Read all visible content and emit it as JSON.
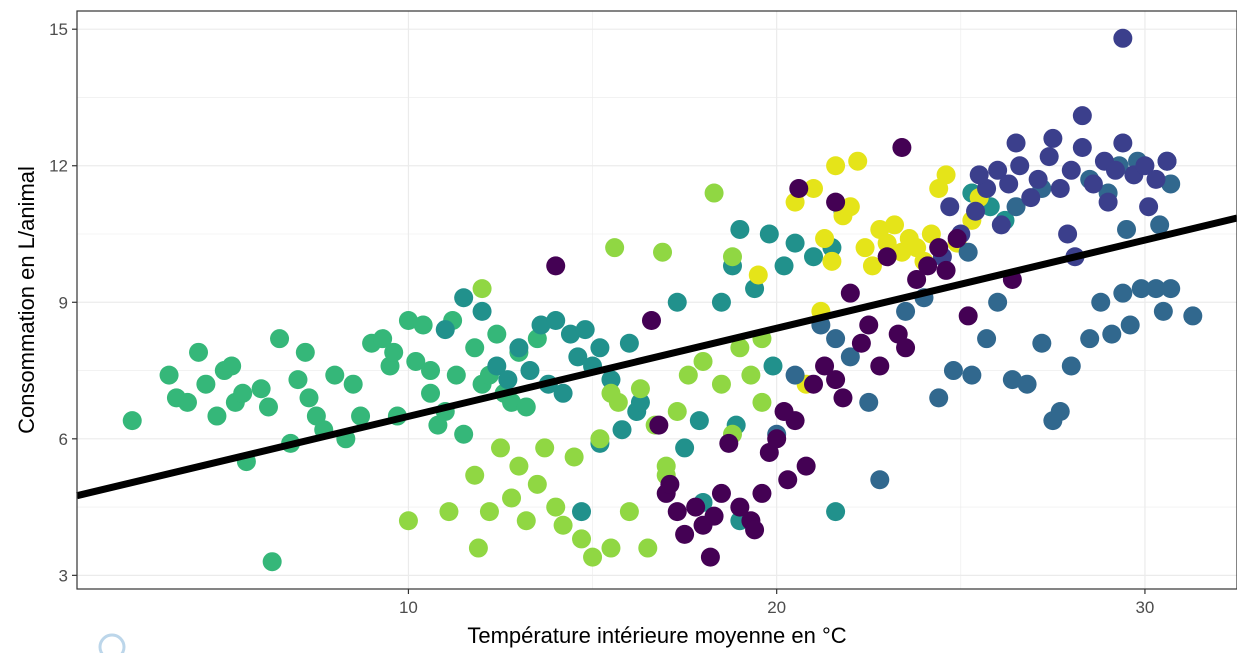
{
  "chart_data": {
    "type": "scatter",
    "title": "",
    "xlabel": "Température intérieure moyenne en °C",
    "ylabel": "Consommation en L/animal",
    "xlim": [
      1,
      32.5
    ],
    "ylim": [
      2.7,
      15.4
    ],
    "xticks": [
      10,
      20,
      30
    ],
    "yticks": [
      3,
      6,
      9,
      12,
      15
    ],
    "grid": true,
    "legend": "none",
    "colors": {
      "dark_purple": "#440154",
      "indigo": "#3b3f8c",
      "blue": "#31688e",
      "teal": "#21918c",
      "green": "#35b779",
      "lime": "#90d743",
      "yellow": "#e5e419",
      "regression_line": "#000000",
      "panel_border": "#333333",
      "grid": "#ebebeb"
    },
    "regression": {
      "x": [
        1,
        32.5
      ],
      "y": [
        4.75,
        10.85
      ]
    },
    "series": [
      {
        "color_key": "green",
        "points": [
          [
            2.5,
            6.4
          ],
          [
            3.5,
            7.4
          ],
          [
            3.7,
            6.9
          ],
          [
            4.0,
            6.8
          ],
          [
            4.3,
            7.9
          ],
          [
            4.5,
            7.2
          ],
          [
            4.8,
            6.5
          ],
          [
            5.0,
            7.5
          ],
          [
            5.2,
            7.6
          ],
          [
            5.3,
            6.8
          ],
          [
            5.5,
            7.0
          ],
          [
            5.6,
            5.5
          ],
          [
            6.0,
            7.1
          ],
          [
            6.2,
            6.7
          ],
          [
            6.5,
            8.2
          ],
          [
            6.8,
            5.9
          ],
          [
            7.0,
            7.3
          ],
          [
            7.2,
            7.9
          ],
          [
            7.5,
            6.5
          ],
          [
            7.7,
            6.2
          ],
          [
            8.0,
            7.4
          ],
          [
            8.3,
            6.0
          ],
          [
            8.5,
            7.2
          ],
          [
            8.7,
            6.5
          ],
          [
            9.0,
            8.1
          ],
          [
            9.3,
            8.2
          ],
          [
            9.5,
            7.6
          ],
          [
            9.7,
            6.5
          ],
          [
            10.0,
            8.6
          ],
          [
            10.2,
            7.7
          ],
          [
            10.4,
            8.5
          ],
          [
            10.6,
            7.5
          ],
          [
            10.8,
            6.3
          ],
          [
            11.0,
            6.6
          ],
          [
            11.2,
            8.6
          ],
          [
            11.3,
            7.4
          ],
          [
            11.5,
            6.1
          ],
          [
            11.8,
            8.0
          ],
          [
            12.0,
            7.2
          ],
          [
            12.2,
            7.4
          ],
          [
            12.4,
            8.3
          ],
          [
            12.6,
            7.0
          ],
          [
            12.8,
            6.8
          ],
          [
            13.0,
            7.9
          ],
          [
            13.2,
            6.7
          ],
          [
            13.5,
            8.2
          ],
          [
            6.3,
            3.3
          ],
          [
            7.3,
            6.9
          ],
          [
            9.6,
            7.9
          ],
          [
            10.6,
            7.0
          ]
        ]
      },
      {
        "color_key": "teal",
        "points": [
          [
            11.0,
            8.4
          ],
          [
            11.5,
            9.1
          ],
          [
            12.0,
            8.8
          ],
          [
            12.4,
            7.6
          ],
          [
            12.7,
            7.3
          ],
          [
            13.0,
            8.0
          ],
          [
            13.3,
            7.5
          ],
          [
            13.6,
            8.5
          ],
          [
            13.8,
            7.2
          ],
          [
            14.0,
            8.6
          ],
          [
            14.2,
            7.0
          ],
          [
            14.4,
            8.3
          ],
          [
            14.6,
            7.8
          ],
          [
            14.8,
            8.4
          ],
          [
            15.0,
            7.6
          ],
          [
            15.2,
            8.0
          ],
          [
            15.5,
            7.3
          ],
          [
            15.8,
            6.2
          ],
          [
            16.0,
            8.1
          ],
          [
            16.2,
            6.6
          ],
          [
            17.3,
            9.0
          ],
          [
            18.8,
            9.8
          ],
          [
            19.0,
            10.6
          ],
          [
            19.4,
            9.3
          ],
          [
            19.8,
            10.5
          ],
          [
            20.2,
            9.8
          ],
          [
            20.5,
            10.3
          ],
          [
            21.0,
            10.0
          ],
          [
            21.5,
            10.2
          ],
          [
            21.8,
            11.0
          ],
          [
            25.3,
            11.4
          ],
          [
            25.8,
            11.1
          ],
          [
            26.2,
            10.8
          ],
          [
            18.5,
            9.0
          ],
          [
            14.7,
            4.4
          ],
          [
            15.2,
            5.9
          ],
          [
            16.3,
            6.8
          ],
          [
            17.5,
            5.8
          ],
          [
            18.0,
            4.6
          ],
          [
            19.0,
            4.2
          ],
          [
            21.6,
            4.4
          ],
          [
            19.9,
            7.6
          ],
          [
            17.9,
            6.4
          ],
          [
            18.9,
            6.3
          ]
        ]
      },
      {
        "color_key": "lime",
        "points": [
          [
            11.8,
            5.2
          ],
          [
            12.0,
            9.3
          ],
          [
            12.2,
            4.4
          ],
          [
            12.5,
            5.8
          ],
          [
            12.8,
            4.7
          ],
          [
            13.0,
            5.4
          ],
          [
            13.2,
            4.2
          ],
          [
            13.5,
            5.0
          ],
          [
            13.7,
            5.8
          ],
          [
            14.0,
            4.5
          ],
          [
            14.2,
            4.1
          ],
          [
            14.5,
            5.6
          ],
          [
            14.7,
            3.8
          ],
          [
            15.0,
            3.4
          ],
          [
            15.2,
            6.0
          ],
          [
            15.5,
            3.6
          ],
          [
            15.7,
            6.8
          ],
          [
            16.0,
            4.4
          ],
          [
            16.3,
            7.1
          ],
          [
            16.5,
            3.6
          ],
          [
            16.7,
            6.3
          ],
          [
            17.0,
            5.4
          ],
          [
            17.3,
            6.6
          ],
          [
            17.6,
            7.4
          ],
          [
            18.0,
            7.7
          ],
          [
            18.3,
            11.4
          ],
          [
            18.5,
            7.2
          ],
          [
            18.8,
            6.1
          ],
          [
            19.0,
            8.0
          ],
          [
            19.3,
            7.4
          ],
          [
            15.6,
            10.2
          ],
          [
            16.9,
            10.1
          ],
          [
            18.8,
            10.0
          ],
          [
            19.6,
            8.2
          ],
          [
            19.6,
            6.8
          ],
          [
            10.0,
            4.2
          ],
          [
            11.1,
            4.4
          ],
          [
            11.9,
            3.6
          ],
          [
            15.5,
            7.0
          ],
          [
            17.0,
            5.2
          ]
        ]
      },
      {
        "color_key": "yellow",
        "points": [
          [
            20.5,
            11.2
          ],
          [
            21.0,
            11.5
          ],
          [
            21.3,
            10.4
          ],
          [
            21.6,
            12.0
          ],
          [
            21.8,
            10.9
          ],
          [
            22.0,
            11.1
          ],
          [
            22.2,
            12.1
          ],
          [
            22.4,
            10.2
          ],
          [
            22.6,
            9.8
          ],
          [
            22.8,
            10.6
          ],
          [
            23.0,
            10.3
          ],
          [
            23.2,
            10.7
          ],
          [
            23.4,
            10.1
          ],
          [
            23.6,
            10.4
          ],
          [
            23.8,
            10.2
          ],
          [
            24.0,
            9.9
          ],
          [
            24.2,
            10.5
          ],
          [
            24.4,
            11.5
          ],
          [
            24.6,
            11.8
          ],
          [
            24.9,
            10.3
          ],
          [
            25.3,
            10.8
          ],
          [
            25.5,
            11.3
          ],
          [
            20.8,
            7.2
          ],
          [
            21.2,
            8.8
          ],
          [
            21.5,
            9.9
          ],
          [
            19.5,
            9.6
          ]
        ]
      },
      {
        "color_key": "blue",
        "points": [
          [
            20.5,
            7.4
          ],
          [
            21.2,
            8.5
          ],
          [
            21.6,
            8.2
          ],
          [
            22.0,
            7.8
          ],
          [
            22.5,
            6.8
          ],
          [
            22.8,
            5.1
          ],
          [
            23.5,
            8.8
          ],
          [
            24.0,
            9.1
          ],
          [
            24.4,
            6.9
          ],
          [
            24.8,
            7.5
          ],
          [
            25.3,
            7.4
          ],
          [
            25.7,
            8.2
          ],
          [
            26.0,
            9.0
          ],
          [
            26.4,
            7.3
          ],
          [
            26.8,
            7.2
          ],
          [
            27.2,
            8.1
          ],
          [
            27.5,
            6.4
          ],
          [
            27.7,
            6.6
          ],
          [
            28.0,
            7.6
          ],
          [
            28.5,
            8.2
          ],
          [
            28.8,
            9.0
          ],
          [
            29.1,
            8.3
          ],
          [
            29.4,
            9.2
          ],
          [
            29.6,
            8.5
          ],
          [
            29.9,
            9.3
          ],
          [
            30.3,
            9.3
          ],
          [
            30.5,
            8.8
          ],
          [
            30.7,
            9.3
          ],
          [
            31.3,
            8.7
          ],
          [
            29.5,
            10.6
          ],
          [
            30.4,
            10.7
          ],
          [
            30.7,
            11.6
          ],
          [
            25.2,
            10.1
          ],
          [
            26.5,
            11.1
          ],
          [
            27.2,
            11.5
          ],
          [
            28.5,
            11.7
          ],
          [
            29.0,
            11.4
          ],
          [
            29.3,
            12.0
          ],
          [
            29.8,
            12.1
          ],
          [
            30.6,
            12.1
          ],
          [
            20.0,
            6.1
          ]
        ]
      },
      {
        "color_key": "indigo",
        "points": [
          [
            24.5,
            10.0
          ],
          [
            25.0,
            10.5
          ],
          [
            25.4,
            11.0
          ],
          [
            25.7,
            11.5
          ],
          [
            26.0,
            11.9
          ],
          [
            26.3,
            11.6
          ],
          [
            26.6,
            12.0
          ],
          [
            26.9,
            11.3
          ],
          [
            27.1,
            11.7
          ],
          [
            27.4,
            12.2
          ],
          [
            27.7,
            11.5
          ],
          [
            28.0,
            11.9
          ],
          [
            28.3,
            12.4
          ],
          [
            28.6,
            11.6
          ],
          [
            28.9,
            12.1
          ],
          [
            29.2,
            11.9
          ],
          [
            29.4,
            12.5
          ],
          [
            29.7,
            11.8
          ],
          [
            30.0,
            12.0
          ],
          [
            30.3,
            11.7
          ],
          [
            30.6,
            12.1
          ],
          [
            29.4,
            14.8
          ],
          [
            28.3,
            13.1
          ],
          [
            27.5,
            12.6
          ],
          [
            26.5,
            12.5
          ],
          [
            25.5,
            11.8
          ],
          [
            27.9,
            10.5
          ],
          [
            28.1,
            10.0
          ],
          [
            29.0,
            11.2
          ],
          [
            30.1,
            11.1
          ],
          [
            24.7,
            11.1
          ],
          [
            26.1,
            10.7
          ]
        ]
      },
      {
        "color_key": "dark_purple",
        "points": [
          [
            14.0,
            9.8
          ],
          [
            16.6,
            8.6
          ],
          [
            16.8,
            6.3
          ],
          [
            17.0,
            4.8
          ],
          [
            17.3,
            4.4
          ],
          [
            17.5,
            3.9
          ],
          [
            17.8,
            4.5
          ],
          [
            18.0,
            4.1
          ],
          [
            18.2,
            3.4
          ],
          [
            18.5,
            4.8
          ],
          [
            18.7,
            5.9
          ],
          [
            19.0,
            4.5
          ],
          [
            19.3,
            4.2
          ],
          [
            19.6,
            4.8
          ],
          [
            19.8,
            5.7
          ],
          [
            20.0,
            6.0
          ],
          [
            20.3,
            5.1
          ],
          [
            20.5,
            6.4
          ],
          [
            20.8,
            5.4
          ],
          [
            21.0,
            7.2
          ],
          [
            21.3,
            7.6
          ],
          [
            21.6,
            7.3
          ],
          [
            21.8,
            6.9
          ],
          [
            22.0,
            9.2
          ],
          [
            22.3,
            8.1
          ],
          [
            22.5,
            8.5
          ],
          [
            22.8,
            7.6
          ],
          [
            23.0,
            10.0
          ],
          [
            23.3,
            8.3
          ],
          [
            23.5,
            8.0
          ],
          [
            23.8,
            9.5
          ],
          [
            24.1,
            9.8
          ],
          [
            24.4,
            10.2
          ],
          [
            24.6,
            9.7
          ],
          [
            24.9,
            10.4
          ],
          [
            25.2,
            8.7
          ],
          [
            23.4,
            12.4
          ],
          [
            20.6,
            11.5
          ],
          [
            21.6,
            11.2
          ],
          [
            26.4,
            9.5
          ],
          [
            17.1,
            5.0
          ],
          [
            18.3,
            4.3
          ],
          [
            19.4,
            4.0
          ],
          [
            20.2,
            6.6
          ]
        ]
      }
    ]
  }
}
